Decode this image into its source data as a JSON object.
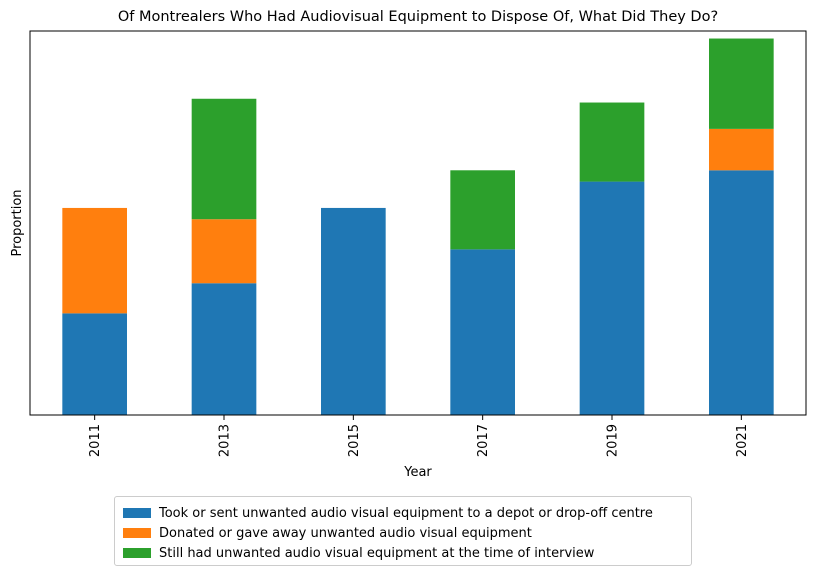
{
  "chart_data": {
    "type": "bar",
    "stacked": true,
    "title": "Of Montrealers Who Had Audiovisual Equipment to Dispose Of, What Did They Do?",
    "xlabel": "Year",
    "ylabel": "Proportion",
    "categories": [
      "2011",
      "2013",
      "2015",
      "2017",
      "2019",
      "2021"
    ],
    "series": [
      {
        "name": "Took or sent unwanted audio visual equipment to a depot or drop-off centre",
        "color": "#1f77b4",
        "values": [
          0.27,
          0.35,
          0.55,
          0.44,
          0.62,
          0.65
        ]
      },
      {
        "name": "Donated or gave away unwanted audio visual equipment",
        "color": "#ff7f0e",
        "values": [
          0.28,
          0.17,
          0,
          0,
          0,
          0.11
        ]
      },
      {
        "name": "Still had unwanted audio visual equipment at the time of interview",
        "color": "#2ca02c",
        "values": [
          0,
          0.32,
          0,
          0.21,
          0.21,
          0.24
        ]
      }
    ],
    "ylim": [
      0,
      1.02
    ],
    "yticks_shown": false,
    "grid": false,
    "legend_position": "below-center"
  }
}
